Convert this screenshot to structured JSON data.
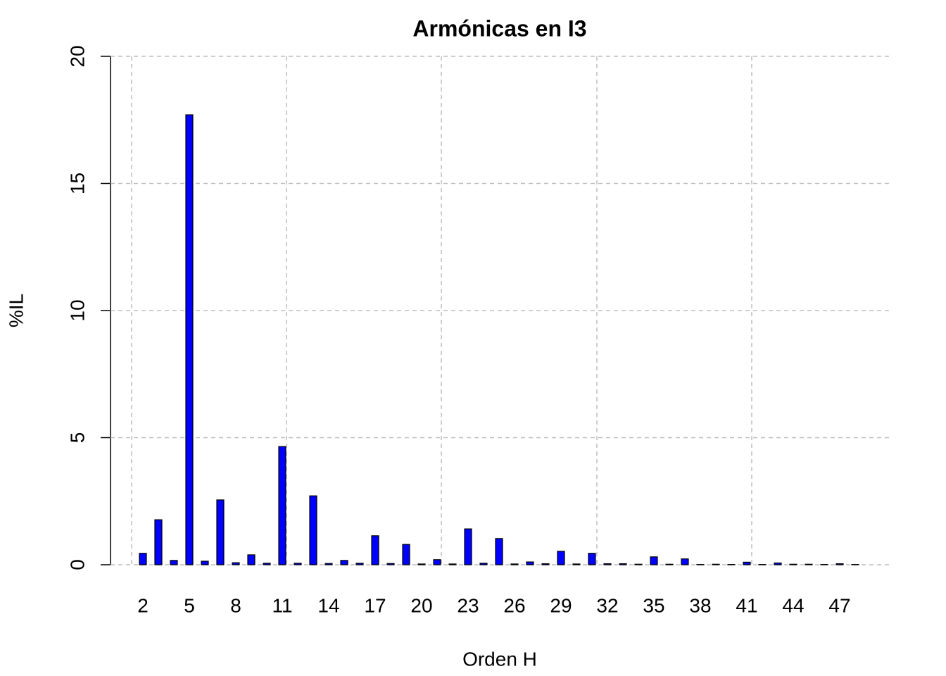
{
  "chart_data": {
    "type": "bar",
    "title": "Armónicas en I3",
    "x_label": "Orden H",
    "y_label": "%IL",
    "categories": [
      "2",
      null,
      null,
      "5",
      null,
      null,
      "8",
      null,
      null,
      "11",
      null,
      null,
      "14",
      null,
      null,
      "17",
      null,
      null,
      "20",
      null,
      null,
      "23",
      null,
      null,
      "26",
      null,
      null,
      "29",
      null,
      null,
      "32",
      null,
      null,
      "35",
      null,
      null,
      "38",
      null,
      null,
      "41",
      null,
      null,
      "44",
      null,
      null,
      "47",
      null
    ],
    "values": [
      0.45,
      1.77,
      0.17,
      17.7,
      0.14,
      2.55,
      0.08,
      0.39,
      0.06,
      4.65,
      0.06,
      2.71,
      0.05,
      0.17,
      0.06,
      1.14,
      0.05,
      0.8,
      0.03,
      0.2,
      0.03,
      1.41,
      0.06,
      1.03,
      0.03,
      0.11,
      0.04,
      0.53,
      0.03,
      0.45,
      0.04,
      0.04,
      0.02,
      0.31,
      0.02,
      0.23,
      0.01,
      0.02,
      0.01,
      0.1,
      0.01,
      0.07,
      0.02,
      0.02,
      0.01,
      0.04,
      0.01
    ],
    "color": "#0000ff",
    "ylim": [
      0,
      20
    ],
    "yticks": [
      0,
      5,
      10,
      15,
      20
    ],
    "grid": true
  }
}
